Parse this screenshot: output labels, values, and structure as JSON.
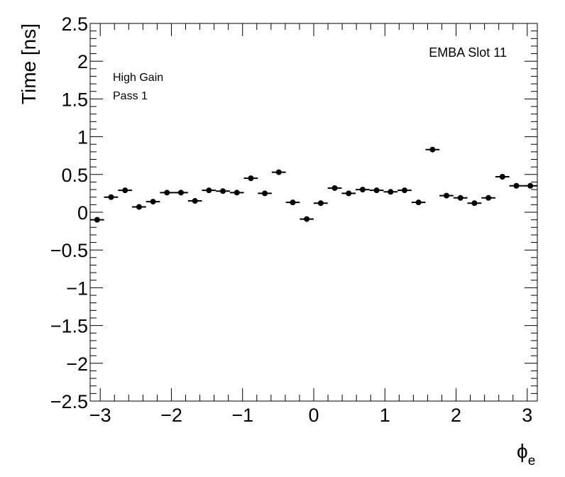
{
  "chart_data": {
    "type": "scatter",
    "title": "",
    "xlabel": "ϕ",
    "xlabel_sub": "e",
    "ylabel": "Time [ns]",
    "xlim": [
      -3.14159,
      3.14159
    ],
    "ylim": [
      -2.5,
      2.5
    ],
    "x_ticks": [
      {
        "v": -3,
        "label": "−3"
      },
      {
        "v": -2,
        "label": "−2"
      },
      {
        "v": -1,
        "label": "−1"
      },
      {
        "v": 0,
        "label": "0"
      },
      {
        "v": 1,
        "label": "1"
      },
      {
        "v": 2,
        "label": "2"
      },
      {
        "v": 3,
        "label": "3"
      }
    ],
    "y_ticks": [
      {
        "v": 2.5,
        "label": "2.5"
      },
      {
        "v": 2,
        "label": "2"
      },
      {
        "v": 1.5,
        "label": "1.5"
      },
      {
        "v": 1,
        "label": "1"
      },
      {
        "v": 0.5,
        "label": "0.5"
      },
      {
        "v": 0,
        "label": "0"
      },
      {
        "v": -0.5,
        "label": "−0.5"
      },
      {
        "v": -1,
        "label": "−1"
      },
      {
        "v": -1.5,
        "label": "−1.5"
      },
      {
        "v": -2,
        "label": "−2"
      },
      {
        "v": -2.5,
        "label": "−2.5"
      }
    ],
    "annotations": {
      "top_right": "EMBA Slot 11",
      "line1": "High Gain",
      "line2": "Pass 1"
    },
    "grid": false,
    "bin_width": 0.19635,
    "points": [
      {
        "x": -3.0434,
        "y": -0.1
      },
      {
        "x": -2.8471,
        "y": 0.2
      },
      {
        "x": -2.6507,
        "y": 0.29
      },
      {
        "x": -2.4544,
        "y": 0.07
      },
      {
        "x": -2.258,
        "y": 0.14
      },
      {
        "x": -2.0617,
        "y": 0.26
      },
      {
        "x": -1.8653,
        "y": 0.26
      },
      {
        "x": -1.669,
        "y": 0.15
      },
      {
        "x": -1.4726,
        "y": 0.29
      },
      {
        "x": -1.2763,
        "y": 0.28
      },
      {
        "x": -1.0799,
        "y": 0.26
      },
      {
        "x": -0.8836,
        "y": 0.45
      },
      {
        "x": -0.6872,
        "y": 0.25
      },
      {
        "x": -0.4909,
        "y": 0.53
      },
      {
        "x": -0.2945,
        "y": 0.13
      },
      {
        "x": -0.0982,
        "y": -0.09
      },
      {
        "x": 0.0982,
        "y": 0.12
      },
      {
        "x": 0.2945,
        "y": 0.32
      },
      {
        "x": 0.4909,
        "y": 0.25
      },
      {
        "x": 0.6872,
        "y": 0.3
      },
      {
        "x": 0.8836,
        "y": 0.29
      },
      {
        "x": 1.0799,
        "y": 0.27
      },
      {
        "x": 1.2763,
        "y": 0.29
      },
      {
        "x": 1.4726,
        "y": 0.13
      },
      {
        "x": 1.669,
        "y": 0.83
      },
      {
        "x": 1.8653,
        "y": 0.22
      },
      {
        "x": 2.0617,
        "y": 0.19
      },
      {
        "x": 2.258,
        "y": 0.12
      },
      {
        "x": 2.4544,
        "y": 0.19
      },
      {
        "x": 2.6507,
        "y": 0.47
      },
      {
        "x": 2.8471,
        "y": 0.35
      },
      {
        "x": 3.0434,
        "y": 0.35
      }
    ]
  }
}
